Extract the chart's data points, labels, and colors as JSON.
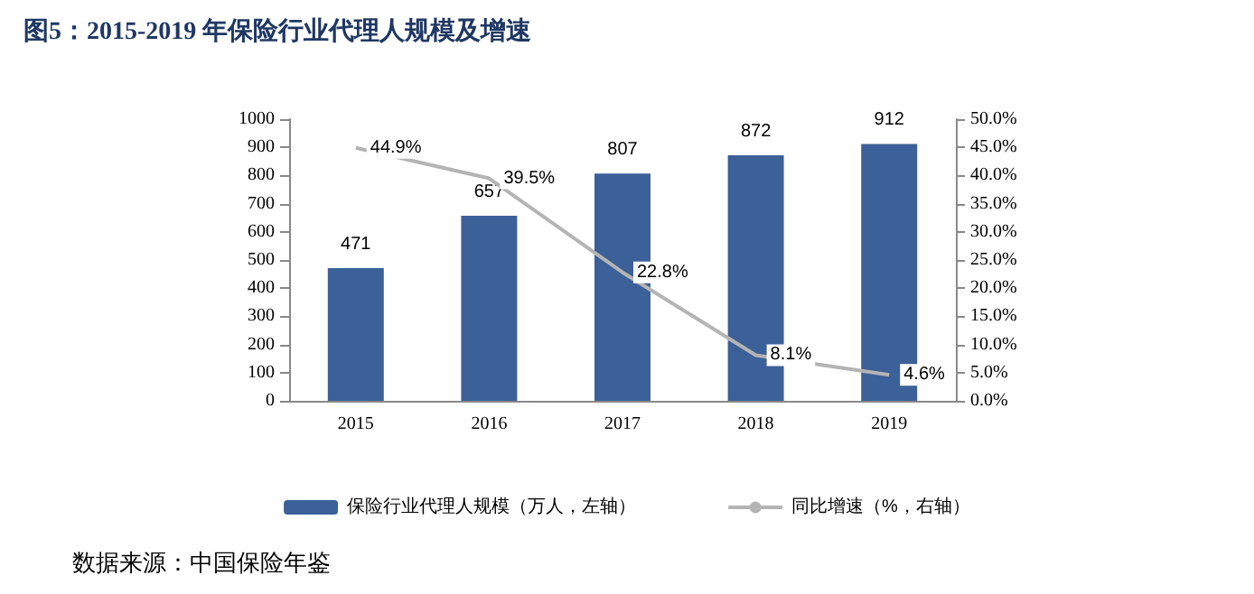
{
  "chart_data": {
    "type": "bar",
    "title": "图5：2015-2019 年保险行业代理人规模及增速",
    "categories": [
      "2015",
      "2016",
      "2017",
      "2018",
      "2019"
    ],
    "series": [
      {
        "name": "保险行业代理人规模（万人，左轴）",
        "color": "#3c6098",
        "values": [
          471,
          657,
          807,
          872,
          912
        ],
        "data_labels": true
      },
      {
        "name": "同比增速（%，右轴）",
        "type": "line",
        "axis": "y2",
        "color": "#b4b4b4",
        "values": [
          44.9,
          39.5,
          22.8,
          8.1,
          4.6
        ],
        "value_labels": [
          "44.9%",
          "39.5%",
          "22.8%",
          "8.1%",
          "4.6%"
        ]
      }
    ],
    "ylim": [
      0,
      1000
    ],
    "yticks": [
      0,
      100,
      200,
      300,
      400,
      500,
      600,
      700,
      800,
      900,
      1000
    ],
    "y2lim": [
      0,
      50
    ],
    "y2ticks": [
      {
        "value": 0,
        "label": "0.0%"
      },
      {
        "value": 5,
        "label": "5.0%"
      },
      {
        "value": 10,
        "label": "10.0%"
      },
      {
        "value": 15,
        "label": "15.0%"
      },
      {
        "value": 20,
        "label": "20.0%"
      },
      {
        "value": 25,
        "label": "25.0%"
      },
      {
        "value": 30,
        "label": "30.0%"
      },
      {
        "value": 35,
        "label": "35.0%"
      },
      {
        "value": 40,
        "label": "40.0%"
      },
      {
        "value": 45,
        "label": "45.0%"
      },
      {
        "value": 50,
        "label": "50.0%"
      }
    ],
    "grid": false,
    "legend": "bottom",
    "marker": "none",
    "line_style": "solid",
    "annotations": [
      "数据来源：中国保险年鉴"
    ]
  }
}
